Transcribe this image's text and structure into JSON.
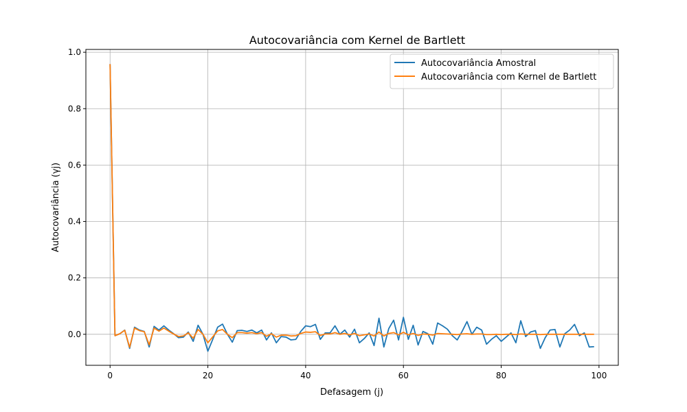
{
  "chart_data": {
    "type": "line",
    "title": "Autocovariância com Kernel de Bartlett",
    "xlabel": "Defasagem (j)",
    "ylabel": "Autocovariância (γj)",
    "xlim": [
      -4.95,
      103.95
    ],
    "ylim": [
      -0.11,
      1.01
    ],
    "xticks": [
      0,
      20,
      40,
      60,
      80,
      100
    ],
    "yticks": [
      0.0,
      0.2,
      0.4,
      0.6,
      0.8,
      1.0
    ],
    "xtick_labels": [
      "0",
      "20",
      "40",
      "60",
      "80",
      "100"
    ],
    "ytick_labels": [
      "0.0",
      "0.2",
      "0.4",
      "0.6",
      "0.8",
      "1.0"
    ],
    "grid": true,
    "legend_position": "top-right",
    "series": [
      {
        "name": "Autocovariância Amostral",
        "color": "#1f77b4",
        "values": [
          0.958,
          -0.005,
          0.002,
          0.015,
          -0.05,
          0.025,
          0.015,
          0.01,
          -0.045,
          0.028,
          0.015,
          0.03,
          0.015,
          0.002,
          -0.012,
          -0.01,
          0.008,
          -0.025,
          0.032,
          0.0,
          -0.06,
          -0.018,
          0.025,
          0.036,
          0.0,
          -0.028,
          0.013,
          0.014,
          0.01,
          0.015,
          0.005,
          0.015,
          -0.02,
          0.005,
          -0.03,
          -0.008,
          -0.01,
          -0.02,
          -0.018,
          0.01,
          0.03,
          0.027,
          0.035,
          -0.018,
          0.005,
          0.005,
          0.03,
          0.0,
          0.015,
          -0.01,
          0.018,
          -0.03,
          -0.015,
          0.005,
          -0.04,
          0.057,
          -0.045,
          0.02,
          0.05,
          -0.02,
          0.06,
          -0.018,
          0.032,
          -0.038,
          0.01,
          0.002,
          -0.035,
          0.04,
          0.03,
          0.018,
          -0.005,
          -0.02,
          0.01,
          0.045,
          0.0,
          0.025,
          0.015,
          -0.035,
          -0.018,
          -0.005,
          -0.025,
          -0.01,
          0.005,
          -0.03,
          0.048,
          -0.008,
          0.008,
          0.013,
          -0.05,
          -0.012,
          0.015,
          0.017,
          -0.045,
          0.002,
          0.015,
          0.035,
          -0.005,
          0.005,
          -0.045,
          -0.044
        ]
      },
      {
        "name": "Autocovariância com Kernel de Bartlett",
        "color": "#ff7f0e",
        "values": [
          0.958,
          -0.005,
          0.002,
          0.014,
          -0.046,
          0.022,
          0.013,
          0.009,
          -0.037,
          0.022,
          0.011,
          0.022,
          0.011,
          0.001,
          -0.008,
          -0.006,
          0.005,
          -0.014,
          0.017,
          0.0,
          -0.03,
          -0.009,
          0.012,
          0.017,
          0.0,
          -0.012,
          0.006,
          0.006,
          0.004,
          0.006,
          0.002,
          0.006,
          -0.007,
          0.002,
          -0.01,
          -0.003,
          -0.003,
          -0.006,
          -0.005,
          0.003,
          0.008,
          0.007,
          0.009,
          -0.004,
          0.001,
          0.001,
          0.006,
          0.0,
          0.003,
          -0.002,
          0.003,
          -0.005,
          -0.002,
          0.001,
          -0.006,
          0.008,
          -0.006,
          0.003,
          0.006,
          -0.002,
          0.007,
          -0.002,
          0.003,
          -0.004,
          0.001,
          0.0,
          -0.003,
          0.003,
          0.002,
          0.001,
          0.0,
          -0.001,
          0.001,
          0.002,
          0.0,
          0.001,
          0.001,
          -0.001,
          -0.001,
          0.0,
          -0.001,
          0.0,
          0.0,
          -0.001,
          0.001,
          0.0,
          0.0,
          0.0,
          -0.001,
          0.0,
          0.0,
          0.0,
          0.0,
          0.0,
          0.0,
          0.0,
          0.0,
          0.0,
          0.0,
          0.0
        ]
      }
    ]
  }
}
